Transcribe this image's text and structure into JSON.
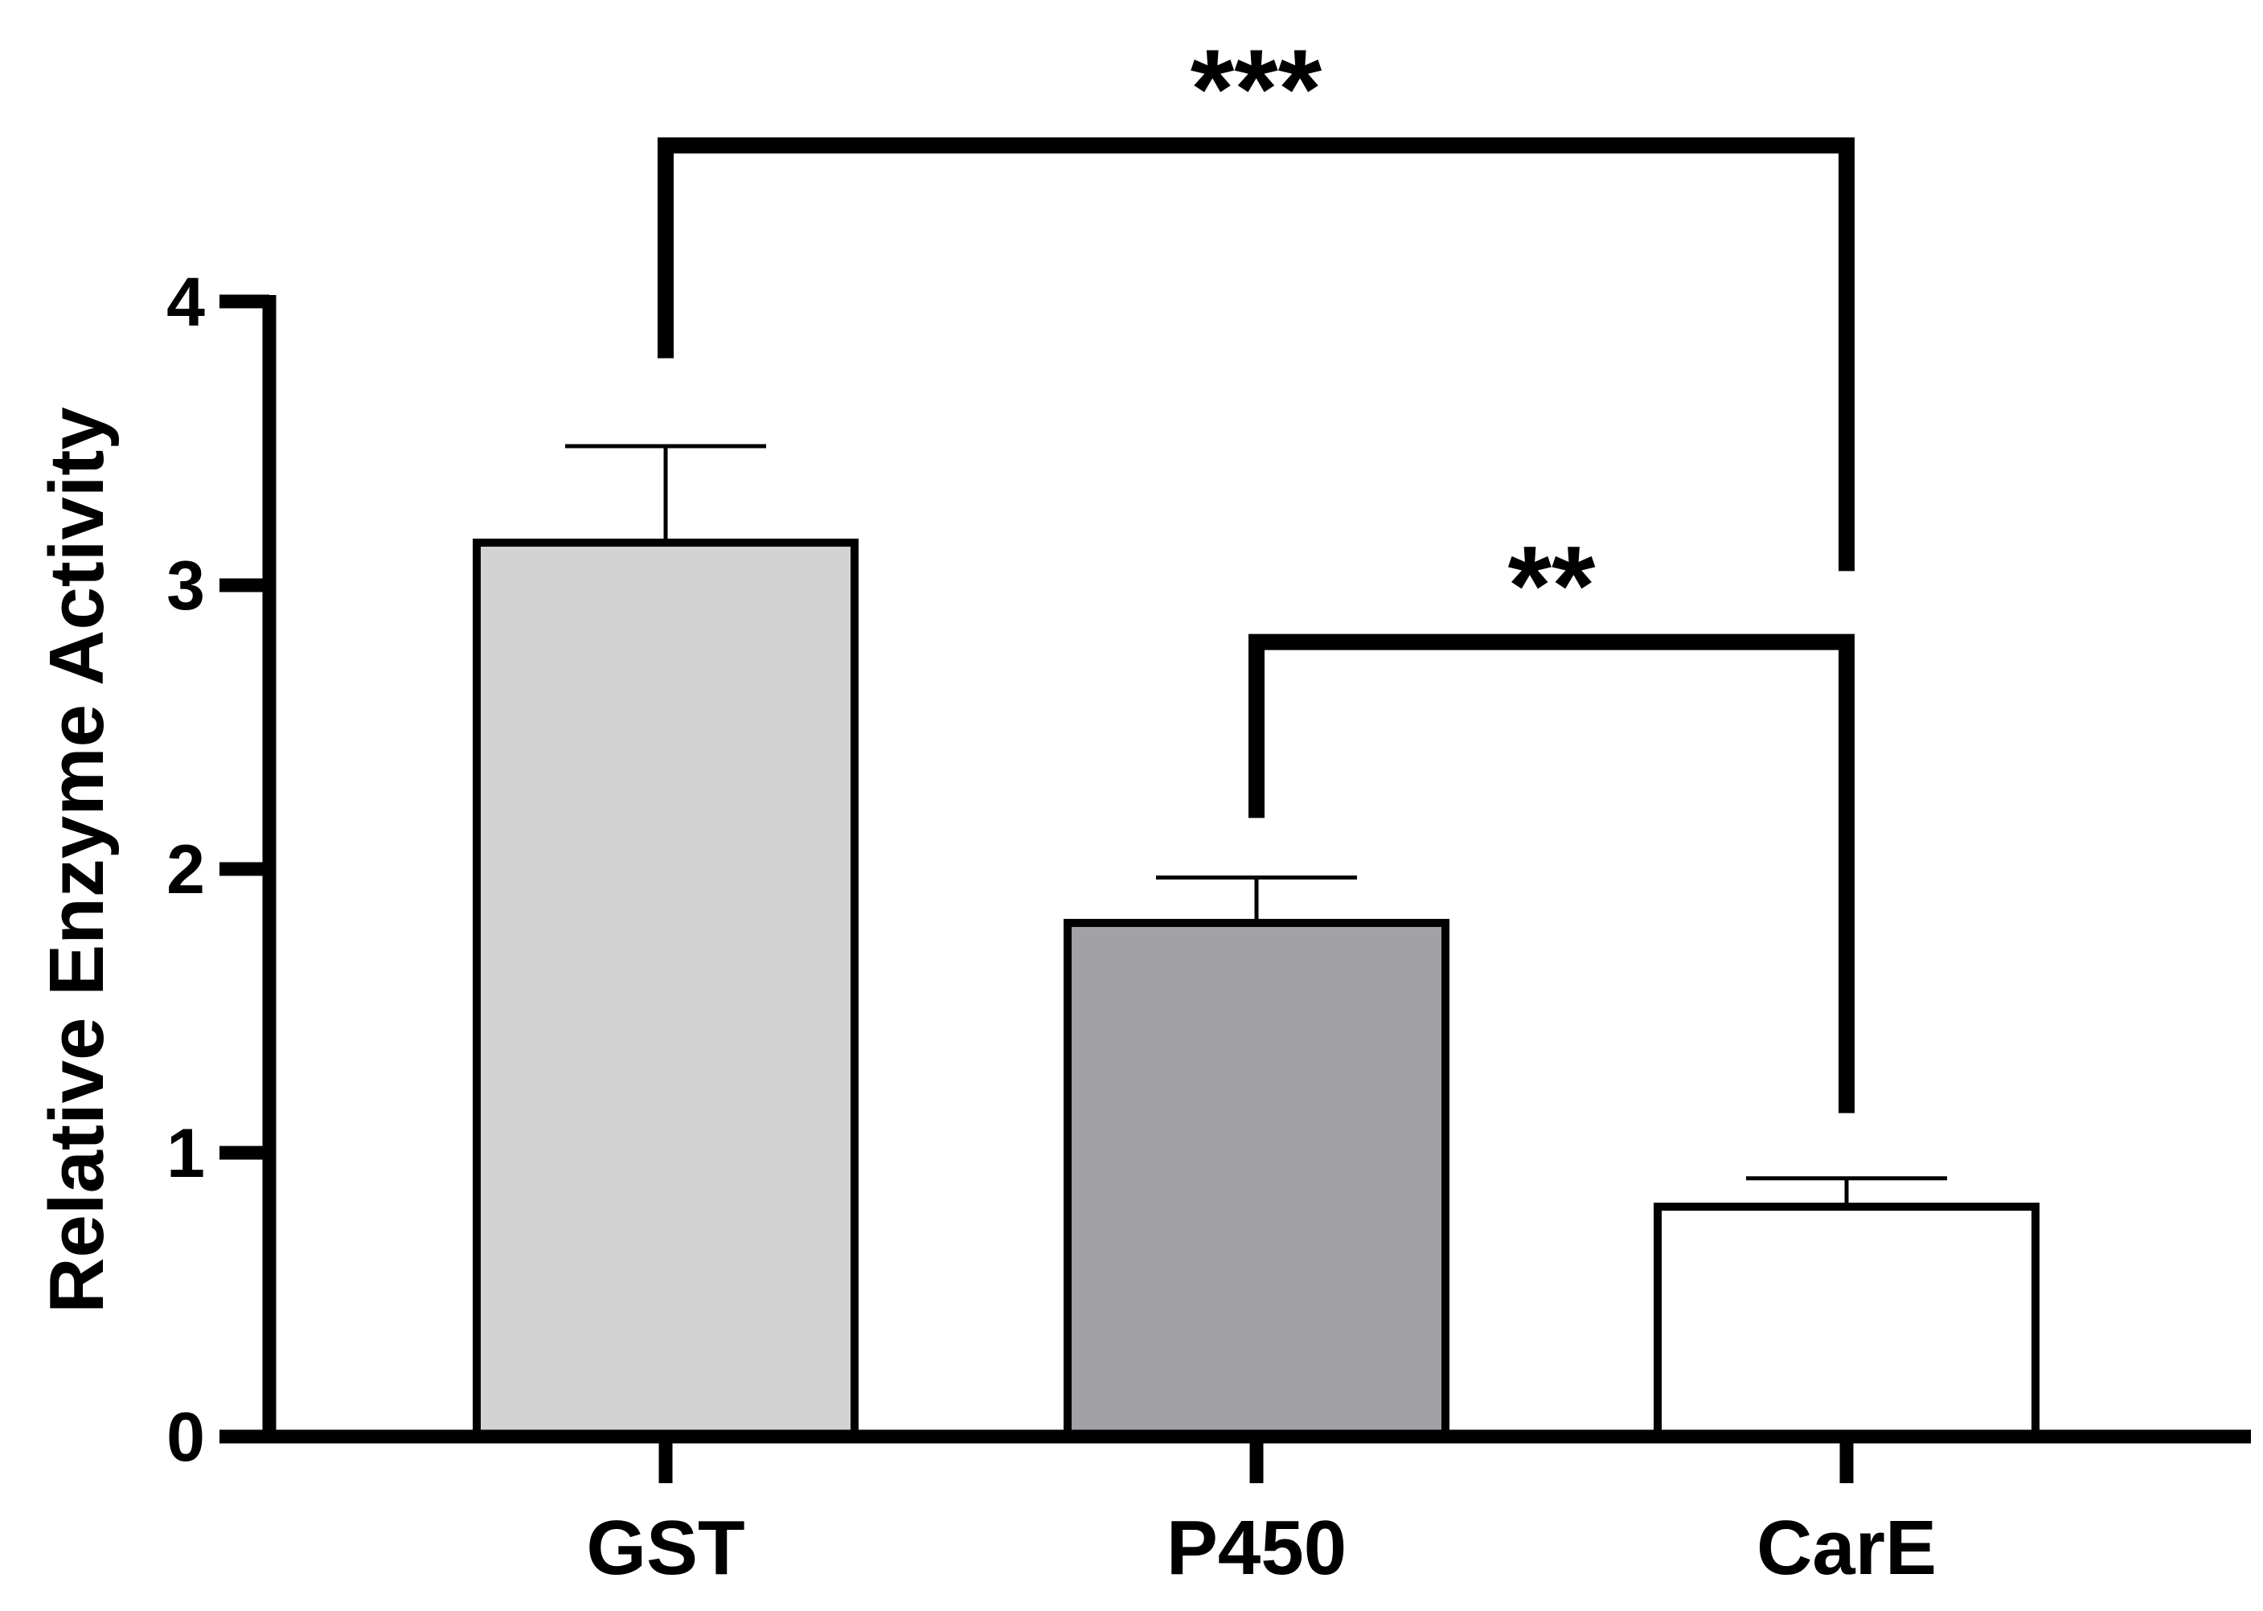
{
  "chart_data": {
    "type": "bar",
    "title": "",
    "xlabel": "",
    "ylabel": "Relative Enzyme Activity",
    "ylim": [
      0,
      4
    ],
    "yticks": [
      "0",
      "1",
      "2",
      "3",
      "4"
    ],
    "categories": [
      "GST",
      "P450",
      "CarE"
    ],
    "values": [
      3.15,
      1.81,
      0.81
    ],
    "errors": [
      0.34,
      0.16,
      0.1
    ],
    "colors": [
      "#d3d3d3",
      "#a2a1a6",
      "#ffffff"
    ],
    "edge_color": "#000000",
    "grid": false,
    "legend": "none",
    "significance": [
      {
        "from": 0,
        "to": 2,
        "label": "***",
        "y": 4.55,
        "left_drop": 3.8,
        "right_drop": 3.05
      },
      {
        "from": 1,
        "to": 2,
        "label": "**",
        "y": 2.8,
        "left_drop": 2.18,
        "right_drop": 1.14
      }
    ]
  }
}
